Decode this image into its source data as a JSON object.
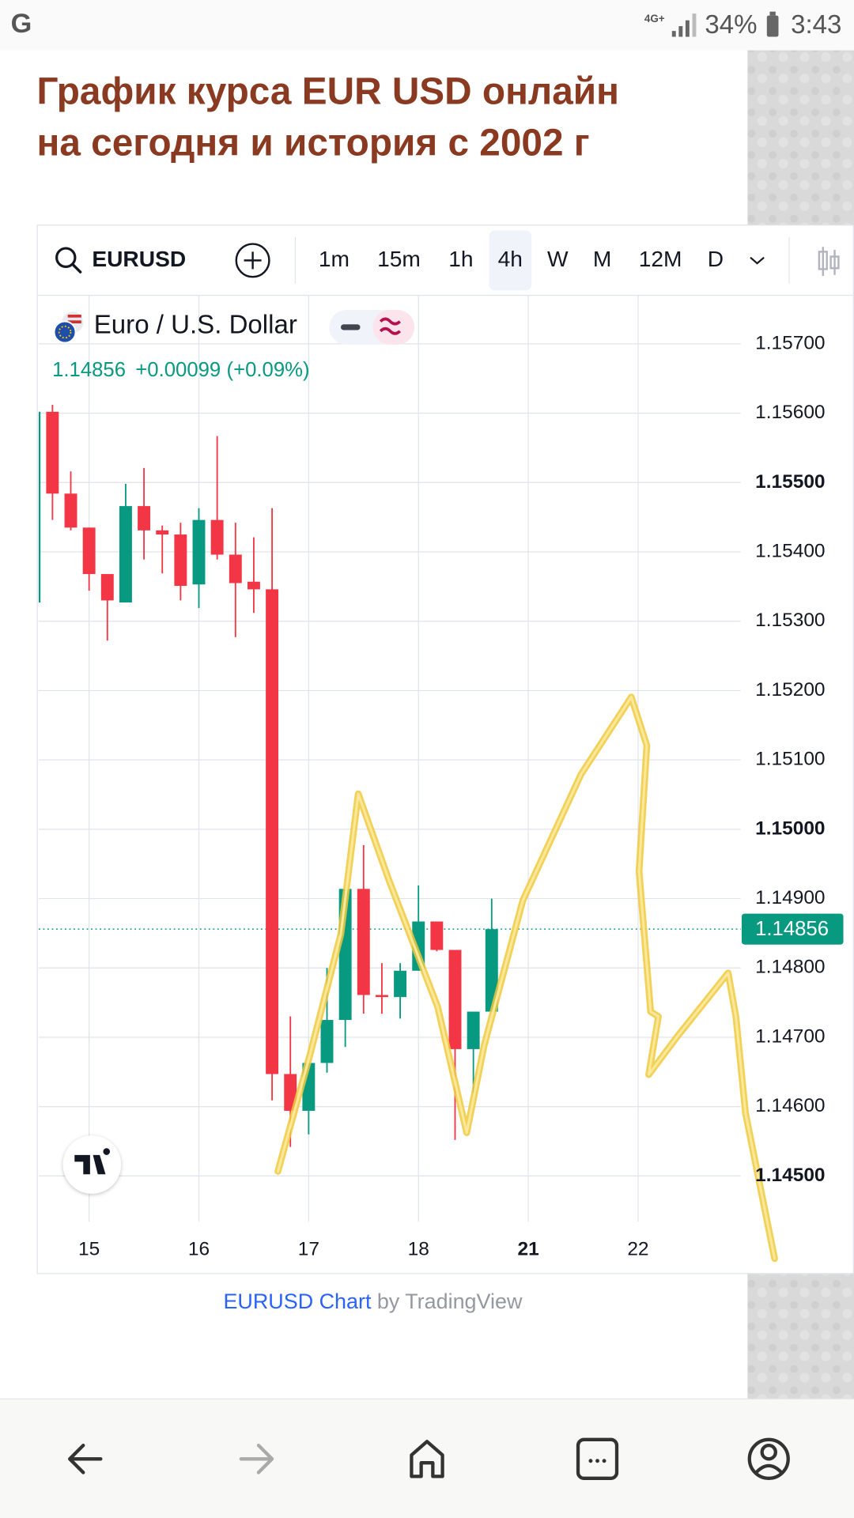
{
  "status_bar": {
    "left": "G",
    "network": "4G+",
    "battery": "34%",
    "time": "3:43"
  },
  "page_title_lines": [
    "График курса EUR USD онлайн",
    "на сегодня и история с 2002 г"
  ],
  "toolbar": {
    "symbol": "EURUSD",
    "intervals": [
      "1m",
      "15m",
      "1h",
      "4h",
      "W",
      "M",
      "12M",
      "D"
    ],
    "active_interval": "4h"
  },
  "chart_data": {
    "type": "candlestick",
    "legend": {
      "name": "Euro / U.S. Dollar",
      "change": "+0.00099",
      "change_percent": "(+0.09%)"
    },
    "categories": [
      null,
      null,
      null,
      "15",
      null,
      null,
      null,
      null,
      null,
      "16",
      null,
      null,
      null,
      null,
      null,
      "17",
      null,
      null,
      null,
      null,
      null,
      "18",
      null,
      null,
      null,
      null,
      null,
      "21",
      null,
      null,
      null,
      null,
      null,
      "22",
      null,
      null,
      null,
      null,
      null
    ],
    "open": [
      1.15327,
      1.15602,
      1.15484,
      1.15435,
      1.15368,
      1.15327,
      1.15466,
      1.15431,
      1.15425,
      1.15353,
      1.15446,
      1.15396,
      1.15357,
      1.15346,
      1.14647,
      1.14594,
      1.14663,
      1.14725,
      1.14914,
      1.14761,
      1.14758,
      1.14796,
      1.14867,
      1.14826,
      1.14683,
      1.14737,
      null,
      null,
      null,
      null,
      null,
      null,
      null,
      null,
      null,
      null,
      null,
      null,
      null
    ],
    "high": [
      1.15602,
      1.15612,
      1.15516,
      1.15435,
      1.15368,
      1.15498,
      1.15521,
      1.15438,
      1.15442,
      1.15463,
      1.15567,
      1.15442,
      1.15421,
      1.15463,
      1.1473,
      1.14663,
      1.148,
      1.14914,
      1.14977,
      1.14807,
      1.14807,
      1.14919,
      1.14867,
      1.14826,
      1.14737,
      1.149,
      null,
      null,
      null,
      null,
      null,
      null,
      null,
      null,
      null,
      null,
      null,
      null,
      null
    ],
    "low": [
      1.15327,
      1.15446,
      1.15431,
      1.15344,
      1.15272,
      1.15327,
      1.15389,
      1.15369,
      1.1533,
      1.15319,
      1.15389,
      1.15277,
      1.15312,
      1.14609,
      1.14542,
      1.1456,
      1.14649,
      1.14686,
      1.14734,
      1.14734,
      1.14727,
      1.14796,
      1.14824,
      1.14552,
      1.14619,
      1.14737,
      null,
      null,
      null,
      null,
      null,
      null,
      null,
      null,
      null,
      null,
      null,
      null,
      null
    ],
    "close": [
      1.15602,
      1.15484,
      1.15435,
      1.15368,
      1.1533,
      1.15466,
      1.15431,
      1.15425,
      1.15351,
      1.15446,
      1.15396,
      1.15355,
      1.15346,
      1.14647,
      1.14594,
      1.14663,
      1.14725,
      1.14914,
      1.14761,
      1.14758,
      1.14796,
      1.14867,
      1.14826,
      1.14683,
      1.14737,
      1.14856,
      null,
      null,
      null,
      null,
      null,
      null,
      null,
      null,
      null,
      null,
      null,
      null,
      null
    ],
    "up_color": "#089981",
    "down_color": "#f23645",
    "last_price": 1.14856,
    "ylim": [
      1.14434,
      1.1577
    ],
    "yticks": [
      {
        "value": 1.157,
        "label": "1.15700"
      },
      {
        "value": 1.156,
        "label": "1.15600"
      },
      {
        "value": 1.155,
        "label": "1.15500"
      },
      {
        "value": 1.154,
        "label": "1.15400"
      },
      {
        "value": 1.153,
        "label": "1.15300"
      },
      {
        "value": 1.152,
        "label": "1.15200"
      },
      {
        "value": 1.151,
        "label": "1.15100"
      },
      {
        "value": 1.15,
        "label": "1.15000"
      },
      {
        "value": 1.149,
        "label": "1.14900"
      },
      {
        "value": 1.148,
        "label": "1.14800"
      },
      {
        "value": 1.147,
        "label": "1.14700"
      },
      {
        "value": 1.146,
        "label": "1.14600"
      },
      {
        "value": 1.145,
        "label": "1.14500"
      }
    ],
    "grid": true
  },
  "credit": {
    "link": "EURUSD Chart",
    "by": "by TradingView"
  }
}
